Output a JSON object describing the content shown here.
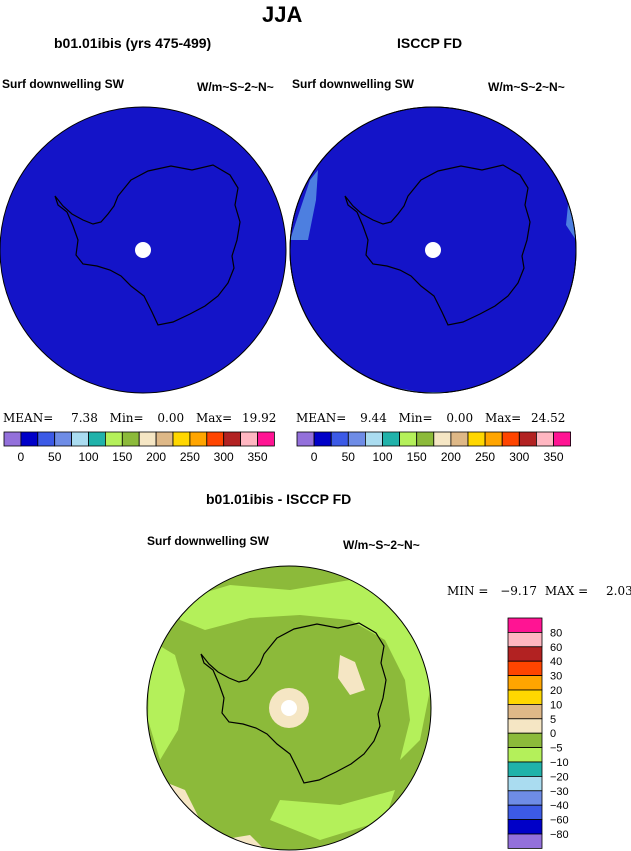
{
  "page_title": "JJA",
  "colors": {
    "deep_blue": "#1414c8",
    "panel_light": "#4d7fe0",
    "green_main": "#8cba3a",
    "green_light": "#b4f05a",
    "beige": "#f5e6c4",
    "coast": "#000000"
  },
  "panels": [
    {
      "title": "b01.01ibis (yrs 475-499)",
      "left_label": "Surf downwelling SW",
      "right_label": "W/m~S~2~N~",
      "stats": {
        "mean_label": "MEAN=",
        "mean": "7.38",
        "min_label": "Min=",
        "min": "0.00",
        "max_label": "Max=",
        "max": "19.92"
      }
    },
    {
      "title": "ISCCP FD",
      "left_label": "Surf downwelling SW",
      "right_label": "W/m~S~2~N~",
      "stats": {
        "mean_label": "MEAN=",
        "mean": "9.44",
        "min_label": "Min=",
        "min": "0.00",
        "max_label": "Max=",
        "max": "24.52"
      }
    }
  ],
  "top_colorbar": {
    "colors": [
      "#9370db",
      "#0000c8",
      "#3c5ae6",
      "#6e8ce6",
      "#aadcf0",
      "#20b2aa",
      "#b4f05a",
      "#8cba3a",
      "#f5e6c4",
      "#deb887",
      "#ffd700",
      "#ffa500",
      "#ff4500",
      "#b22222",
      "#ffb6c1",
      "#ff1493"
    ],
    "labels": [
      "0",
      "50",
      "100",
      "150",
      "200",
      "250",
      "300",
      "350"
    ]
  },
  "diff_panel": {
    "title": "b01.01ibis - ISCCP FD",
    "left_label": "Surf downwelling SW",
    "right_label": "W/m~S~2~N~",
    "stats": {
      "min_label": "MIN =",
      "min": "−9.17",
      "max_label": "MAX =",
      "max": "2.03"
    }
  },
  "diff_colorbar": {
    "colors": [
      "#ff1493",
      "#ffb6c1",
      "#b22222",
      "#ff4500",
      "#ffa500",
      "#ffd700",
      "#deb887",
      "#f5e6c4",
      "#8cba3a",
      "#b4f05a",
      "#20b2aa",
      "#aadcf0",
      "#6e8ce6",
      "#3c5ae6",
      "#0000c8",
      "#9370db"
    ],
    "labels": [
      "80",
      "60",
      "40",
      "30",
      "20",
      "10",
      "5",
      "0",
      "−5",
      "−10",
      "−20",
      "−30",
      "−40",
      "−60",
      "−80"
    ]
  }
}
